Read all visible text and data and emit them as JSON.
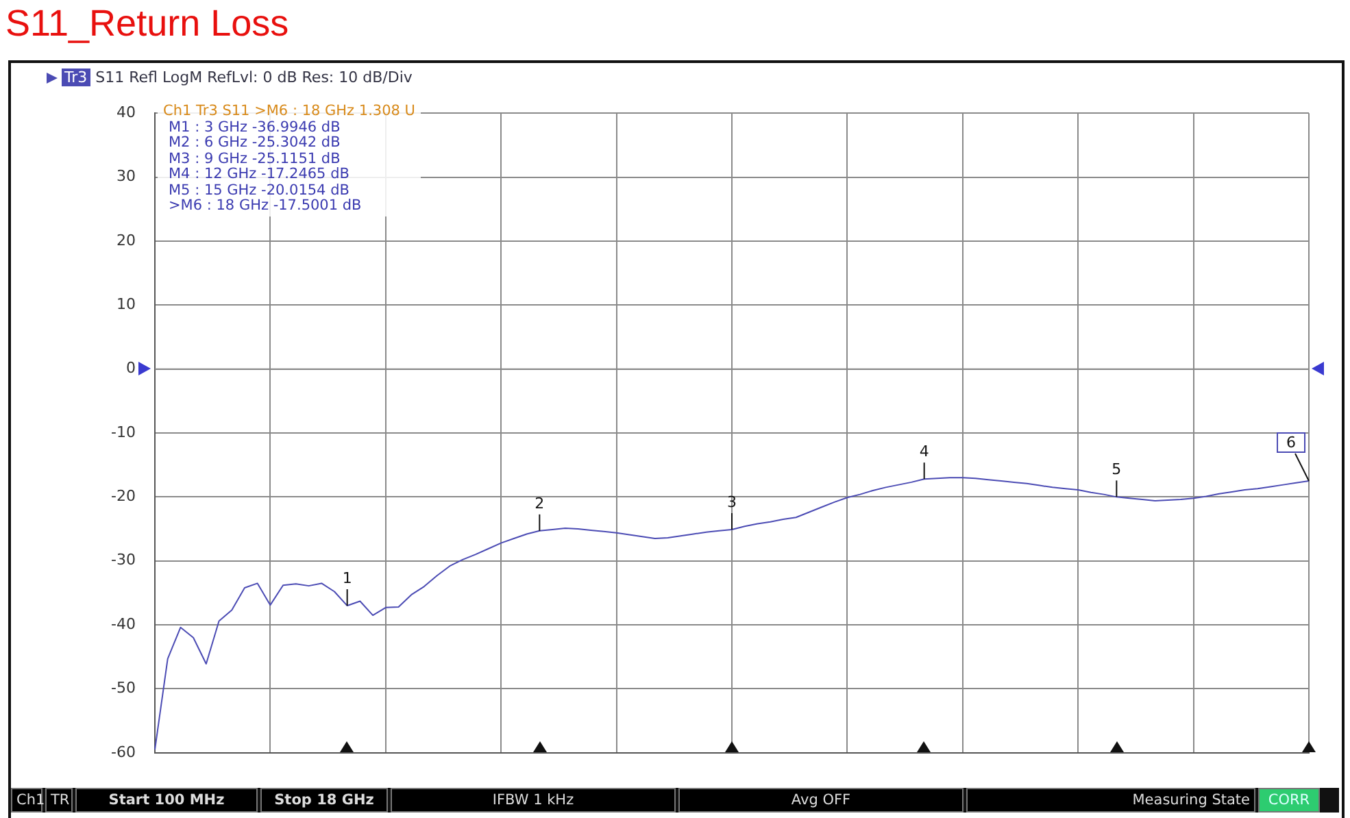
{
  "chart_data": {
    "type": "line",
    "title": "S11_Return Loss",
    "subtitle": "S11 Refl LogM RefLvl: 0 dB Res: 10 dB/Div",
    "legend": "top left",
    "categories": [
      null,
      null,
      null,
      null,
      null,
      null,
      null,
      null,
      null,
      null,
      null,
      null,
      null,
      null,
      null,
      null,
      null,
      null,
      null,
      null,
      null,
      null,
      null,
      null,
      null,
      null,
      null,
      null,
      null,
      null,
      null,
      null,
      null,
      null,
      null,
      null,
      null,
      null,
      null,
      null,
      null,
      null,
      null,
      null,
      null,
      null,
      null,
      null,
      null,
      null,
      null,
      null,
      null,
      null,
      null,
      null,
      null,
      null,
      null,
      null,
      null,
      null,
      null,
      null,
      null,
      null,
      null,
      null,
      null,
      null,
      null,
      null,
      null,
      null,
      null,
      null,
      null,
      null,
      null,
      null,
      null,
      null,
      null,
      null,
      null,
      null,
      null,
      null,
      null,
      null,
      null
    ],
    "series": [
      {
        "name": "Tr3",
        "color": "#4b4bb4",
        "values": [
          -59.5,
          -45.3,
          -40.4,
          -42.0,
          -46.1,
          -39.4,
          -37.7,
          -34.2,
          -33.5,
          -36.9,
          -33.8,
          -33.6,
          -33.9,
          -33.5,
          -34.8,
          -37.0,
          -36.3,
          -38.5,
          -37.3,
          -37.2,
          -35.3,
          -34.0,
          -32.3,
          -30.8,
          -29.8,
          -29.0,
          -28.1,
          -27.2,
          -26.5,
          -25.8,
          -25.3,
          -25.1,
          -24.9,
          -25.0,
          -25.2,
          -25.4,
          -25.6,
          -25.9,
          -26.2,
          -26.5,
          -26.4,
          -26.1,
          -25.8,
          -25.5,
          -25.3,
          -25.1,
          -24.6,
          -24.2,
          -23.9,
          -23.5,
          -23.2,
          -22.4,
          -21.6,
          -20.8,
          -20.1,
          -19.6,
          -19.0,
          -18.5,
          -18.1,
          -17.7,
          -17.2,
          -17.1,
          -17.0,
          -17.0,
          -17.1,
          -17.3,
          -17.5,
          -17.7,
          -17.9,
          -18.2,
          -18.5,
          -18.7,
          -18.9,
          -19.3,
          -19.6,
          -20.0,
          -20.2,
          -20.4,
          -20.6,
          -20.5,
          -20.4,
          -20.2,
          -19.9,
          -19.5,
          -19.2,
          -18.9,
          -18.7,
          -18.4,
          -18.1,
          -17.8,
          -17.5
        ]
      }
    ],
    "ylim": [
      -60,
      40
    ],
    "yticks": [
      -60,
      -50,
      -40,
      -30,
      -20,
      -10,
      0,
      10,
      20,
      30,
      40
    ],
    "grid": true,
    "tick_labels": "y",
    "ref_lines": [
      {
        "axis": "y",
        "value": 0,
        "label": null
      }
    ],
    "annotations": [
      "Ch1 Tr3 S11 >M6 : 18 GHz 1.308 U\nM1 : 3 GHz -36.9946 dB\nM2 : 6 GHz -25.3042 dB\nM3 : 9 GHz -25.1151 dB\nM4 : 12 GHz -17.2465 dB\nM5 : 15 GHz -20.0154 dB\n>M6 : 18 GHz -17.5001 dB",
      "Ch1",
      "TR",
      "Start 100 MHz",
      "Stop 18 GHz",
      "IFBW 1 kHz",
      "Avg OFF",
      "Measuring State",
      "CORR",
      {
        "text": "1",
        "y": -37.0
      },
      {
        "text": "2",
        "y": -25.3
      },
      {
        "text": "3",
        "y": -25.1
      },
      {
        "text": "4",
        "y": -17.2
      },
      {
        "text": "5",
        "y": -20.0
      },
      {
        "text": "6",
        "y": -17.5
      }
    ]
  }
}
